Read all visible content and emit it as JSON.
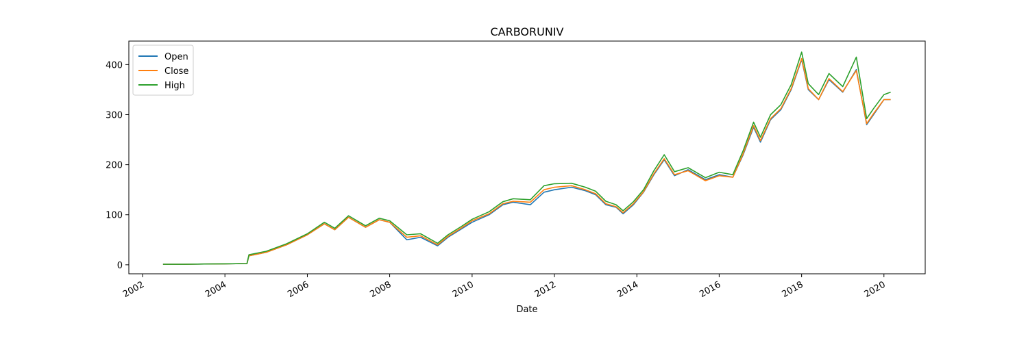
{
  "chart_data": {
    "type": "line",
    "title": "CARBORUNIV",
    "xlabel": "Date",
    "ylabel": "",
    "x_axis": {
      "ticks": [
        "2002",
        "2004",
        "2006",
        "2008",
        "2010",
        "2012",
        "2014",
        "2016",
        "2018",
        "2020"
      ],
      "range": [
        "2001-09-01",
        "2021-01-01"
      ]
    },
    "y_axis": {
      "ticks": [
        0,
        100,
        200,
        300,
        400
      ],
      "range": [
        -18,
        447
      ]
    },
    "grid": false,
    "legend": {
      "placement": "top-left",
      "entries": [
        "Open",
        "Close",
        "High"
      ]
    },
    "x": [
      "2002-07-01",
      "2003-01-01",
      "2003-07-01",
      "2004-01-01",
      "2004-07-15",
      "2004-08-01",
      "2005-01-01",
      "2005-07-01",
      "2006-01-01",
      "2006-06-01",
      "2006-09-01",
      "2007-01-01",
      "2007-06-01",
      "2007-10-01",
      "2008-01-01",
      "2008-06-01",
      "2008-10-01",
      "2009-03-01",
      "2009-06-01",
      "2009-10-01",
      "2010-01-01",
      "2010-06-01",
      "2010-10-01",
      "2011-01-01",
      "2011-06-01",
      "2011-10-01",
      "2012-01-01",
      "2012-06-01",
      "2012-10-01",
      "2013-01-01",
      "2013-04-01",
      "2013-07-01",
      "2013-09-01",
      "2013-12-01",
      "2014-03-01",
      "2014-06-01",
      "2014-09-01",
      "2014-12-01",
      "2015-04-01",
      "2015-09-01",
      "2016-01-01",
      "2016-05-01",
      "2016-08-01",
      "2016-11-01",
      "2017-01-01",
      "2017-04-01",
      "2017-07-01",
      "2017-10-01",
      "2018-01-01",
      "2018-03-01",
      "2018-06-01",
      "2018-09-01",
      "2019-01-01",
      "2019-05-01",
      "2019-08-01",
      "2019-10-01",
      "2020-01-01",
      "2020-03-01"
    ],
    "series": [
      {
        "name": "Open",
        "color": "#1f77b4",
        "values": [
          1,
          1,
          1.5,
          2,
          2.5,
          18,
          25,
          40,
          60,
          82,
          70,
          95,
          75,
          90,
          85,
          50,
          55,
          38,
          55,
          72,
          85,
          100,
          120,
          125,
          120,
          145,
          150,
          155,
          148,
          140,
          120,
          115,
          102,
          120,
          145,
          180,
          210,
          178,
          190,
          170,
          180,
          175,
          220,
          275,
          245,
          290,
          310,
          350,
          410,
          350,
          330,
          370,
          345,
          390,
          280,
          300,
          330,
          330
        ]
      },
      {
        "name": "Close",
        "color": "#ff7f0e",
        "values": [
          1,
          1,
          1.5,
          2,
          2.5,
          18,
          25,
          40,
          60,
          82,
          70,
          95,
          75,
          90,
          85,
          55,
          58,
          40,
          57,
          74,
          88,
          102,
          122,
          127,
          125,
          150,
          155,
          158,
          150,
          142,
          122,
          116,
          104,
          122,
          146,
          182,
          212,
          180,
          188,
          168,
          178,
          175,
          222,
          278,
          248,
          292,
          312,
          352,
          412,
          352,
          330,
          372,
          346,
          388,
          282,
          302,
          330,
          330
        ]
      },
      {
        "name": "High",
        "color": "#2ca02c",
        "values": [
          1,
          1,
          1.5,
          2,
          2.5,
          20,
          27,
          42,
          62,
          85,
          73,
          98,
          78,
          93,
          88,
          60,
          62,
          43,
          60,
          77,
          91,
          106,
          126,
          132,
          130,
          158,
          162,
          163,
          155,
          147,
          127,
          120,
          108,
          126,
          150,
          188,
          220,
          186,
          194,
          174,
          185,
          180,
          228,
          285,
          255,
          300,
          320,
          360,
          425,
          362,
          340,
          382,
          356,
          415,
          292,
          312,
          340,
          345
        ]
      }
    ]
  }
}
